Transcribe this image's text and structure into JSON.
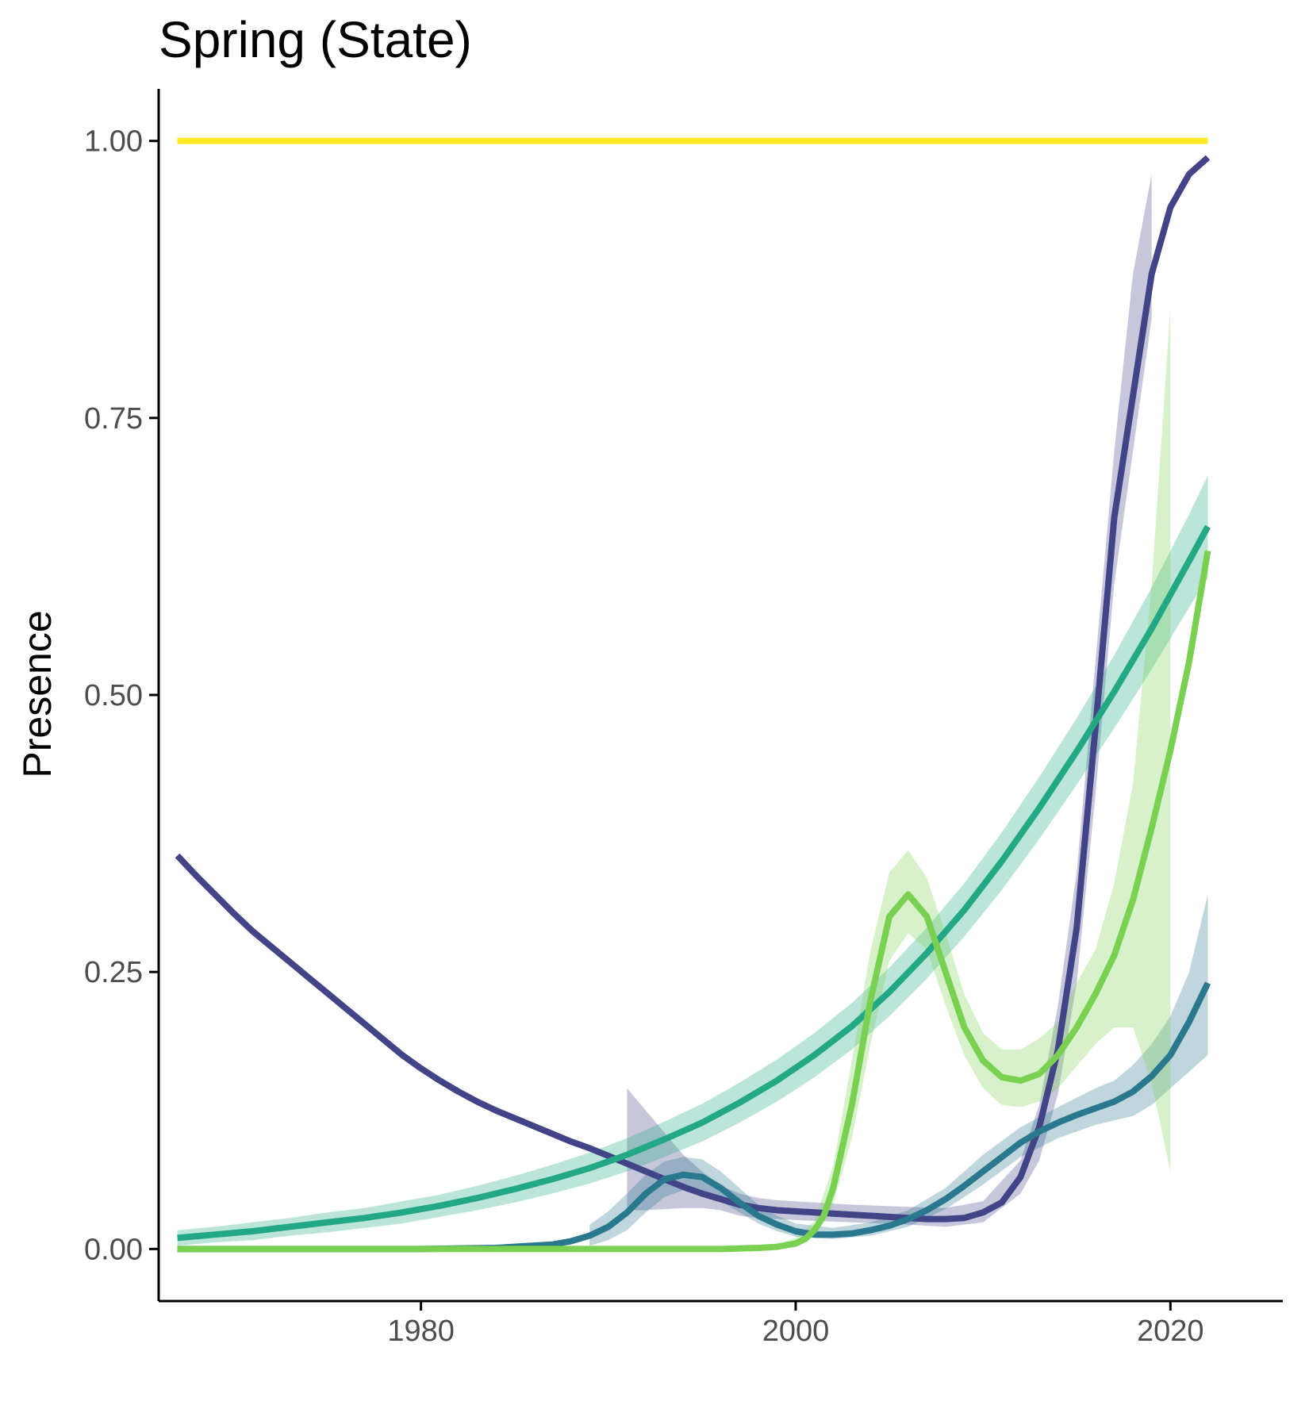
{
  "chart_data": {
    "type": "line",
    "title": "Spring (State)",
    "xlabel": "",
    "ylabel": "Presence",
    "xlim": [
      1966,
      2026
    ],
    "ylim": [
      -0.047,
      1.047
    ],
    "x_ticks": [
      1980,
      2000,
      2020
    ],
    "y_ticks": [
      0.0,
      0.25,
      0.5,
      0.75,
      1.0
    ],
    "y_tick_labels": [
      "0.00",
      "0.25",
      "0.50",
      "0.75",
      "1.00"
    ],
    "x_tick_labels": [
      "1980",
      "2000",
      "2020"
    ],
    "grid": false,
    "legend": "none",
    "series": [
      {
        "color": "#FDE725",
        "x": [
          1967,
          2022
        ],
        "y": [
          1.0,
          1.0
        ]
      },
      {
        "color": "#414487",
        "x": [
          1967,
          1968,
          1969,
          1970,
          1971,
          1972,
          1973,
          1974,
          1975,
          1976,
          1977,
          1978,
          1979,
          1980,
          1981,
          1982,
          1983,
          1984,
          1985,
          1986,
          1987,
          1988,
          1989,
          1990,
          1991,
          1992,
          1993,
          1994,
          1995,
          1996,
          1997,
          1998,
          1999,
          2000,
          2001,
          2002,
          2003,
          2004,
          2005,
          2006,
          2007,
          2008,
          2009,
          2010,
          2011,
          2012,
          2013,
          2014,
          2015,
          2016,
          2017,
          2018,
          2019,
          2020,
          2021,
          2022
        ],
        "y": [
          0.355,
          0.337,
          0.32,
          0.303,
          0.287,
          0.273,
          0.259,
          0.245,
          0.231,
          0.217,
          0.203,
          0.189,
          0.175,
          0.163,
          0.152,
          0.142,
          0.133,
          0.125,
          0.118,
          0.111,
          0.104,
          0.097,
          0.091,
          0.084,
          0.077,
          0.07,
          0.063,
          0.056,
          0.05,
          0.045,
          0.04,
          0.037,
          0.035,
          0.034,
          0.033,
          0.032,
          0.031,
          0.03,
          0.029,
          0.028,
          0.027,
          0.027,
          0.028,
          0.033,
          0.042,
          0.065,
          0.11,
          0.18,
          0.29,
          0.47,
          0.66,
          0.77,
          0.88,
          0.94,
          0.97,
          0.985
        ],
        "band_x": [
          1991,
          1992,
          1993,
          1994,
          1995,
          1996,
          1997,
          1998,
          1999,
          2000,
          2003,
          2006,
          2008,
          2010,
          2012,
          2013,
          2014,
          2015,
          2016,
          2017,
          2018,
          2019
        ],
        "band_low": [
          0.035,
          0.035,
          0.036,
          0.037,
          0.037,
          0.035,
          0.03,
          0.028,
          0.027,
          0.026,
          0.024,
          0.022,
          0.02,
          0.024,
          0.05,
          0.08,
          0.14,
          0.24,
          0.41,
          0.6,
          0.72,
          0.84
        ],
        "band_high": [
          0.145,
          0.125,
          0.105,
          0.085,
          0.07,
          0.057,
          0.05,
          0.046,
          0.044,
          0.043,
          0.04,
          0.038,
          0.037,
          0.043,
          0.08,
          0.13,
          0.22,
          0.34,
          0.53,
          0.72,
          0.88,
          0.97
        ]
      },
      {
        "color": "#2A788E",
        "x": [
          1967,
          1975,
          1980,
          1984,
          1987,
          1988,
          1989,
          1990,
          1991,
          1992,
          1993,
          1994,
          1995,
          1996,
          1997,
          1998,
          1999,
          2000,
          2001,
          2002,
          2003,
          2004,
          2005,
          2006,
          2007,
          2008,
          2009,
          2010,
          2011,
          2012,
          2013,
          2014,
          2015,
          2016,
          2017,
          2018,
          2019,
          2020,
          2021,
          2022
        ],
        "y": [
          0.0,
          0.0,
          0.0,
          0.001,
          0.004,
          0.007,
          0.012,
          0.02,
          0.033,
          0.05,
          0.063,
          0.067,
          0.065,
          0.055,
          0.042,
          0.03,
          0.022,
          0.016,
          0.013,
          0.013,
          0.014,
          0.017,
          0.021,
          0.027,
          0.035,
          0.045,
          0.057,
          0.07,
          0.083,
          0.096,
          0.106,
          0.114,
          0.121,
          0.127,
          0.133,
          0.142,
          0.156,
          0.175,
          0.205,
          0.24
        ],
        "band_x": [
          1989,
          1990,
          1991,
          1992,
          1993,
          1994,
          1995,
          1996,
          1997,
          1998,
          1999,
          2000,
          2002,
          2004,
          2006,
          2008,
          2010,
          2012,
          2014,
          2016,
          2017,
          2018,
          2019,
          2020,
          2021,
          2022
        ],
        "band_low": [
          0.003,
          0.008,
          0.017,
          0.033,
          0.047,
          0.053,
          0.05,
          0.043,
          0.033,
          0.023,
          0.016,
          0.011,
          0.009,
          0.012,
          0.02,
          0.036,
          0.058,
          0.083,
          0.1,
          0.112,
          0.116,
          0.12,
          0.13,
          0.145,
          0.16,
          0.175
        ],
        "band_high": [
          0.022,
          0.034,
          0.05,
          0.067,
          0.079,
          0.083,
          0.081,
          0.07,
          0.055,
          0.04,
          0.03,
          0.023,
          0.019,
          0.024,
          0.035,
          0.055,
          0.085,
          0.11,
          0.128,
          0.145,
          0.152,
          0.166,
          0.185,
          0.21,
          0.25,
          0.32
        ]
      },
      {
        "color": "#22A884",
        "x": [
          1967,
          1969,
          1971,
          1973,
          1975,
          1977,
          1979,
          1981,
          1983,
          1985,
          1987,
          1989,
          1991,
          1993,
          1995,
          1997,
          1999,
          2001,
          2003,
          2005,
          2007,
          2009,
          2011,
          2013,
          2015,
          2017,
          2019,
          2021,
          2022
        ],
        "y": [
          0.01,
          0.013,
          0.016,
          0.02,
          0.024,
          0.028,
          0.033,
          0.039,
          0.046,
          0.054,
          0.063,
          0.073,
          0.085,
          0.099,
          0.114,
          0.132,
          0.152,
          0.175,
          0.201,
          0.232,
          0.267,
          0.306,
          0.35,
          0.398,
          0.449,
          0.503,
          0.56,
          0.621,
          0.652
        ],
        "band_half_width": [
          0.007,
          0.007,
          0.008,
          0.008,
          0.009,
          0.009,
          0.01,
          0.01,
          0.011,
          0.012,
          0.013,
          0.014,
          0.015,
          0.016,
          0.017,
          0.018,
          0.019,
          0.02,
          0.021,
          0.022,
          0.023,
          0.024,
          0.026,
          0.028,
          0.03,
          0.033,
          0.037,
          0.042,
          0.046
        ]
      },
      {
        "color": "#7AD151",
        "x": [
          1967,
          1990,
          1996,
          1998,
          1999,
          2000,
          2000.5,
          2001,
          2001.5,
          2002,
          2003,
          2004,
          2005,
          2006,
          2007,
          2008,
          2009,
          2010,
          2011,
          2012,
          2013,
          2014,
          2015,
          2016,
          2017,
          2018,
          2019,
          2020,
          2021,
          2022
        ],
        "y": [
          0.0,
          0.0,
          0.0,
          0.001,
          0.002,
          0.005,
          0.009,
          0.017,
          0.03,
          0.055,
          0.13,
          0.225,
          0.3,
          0.32,
          0.3,
          0.25,
          0.2,
          0.17,
          0.155,
          0.152,
          0.158,
          0.175,
          0.2,
          0.23,
          0.265,
          0.315,
          0.38,
          0.45,
          0.53,
          0.63
        ],
        "band_x": [
          1999,
          2000,
          2001,
          2002,
          2003,
          2004,
          2005,
          2006,
          2007,
          2008,
          2009,
          2010,
          2011,
          2012,
          2013,
          2014,
          2015,
          2016,
          2017,
          2018,
          2019,
          2020
        ],
        "band_low": [
          0.0,
          0.003,
          0.012,
          0.04,
          0.1,
          0.185,
          0.26,
          0.285,
          0.27,
          0.22,
          0.175,
          0.145,
          0.13,
          0.128,
          0.133,
          0.145,
          0.165,
          0.185,
          0.2,
          0.2,
          0.15,
          0.07
        ],
        "band_high": [
          0.004,
          0.01,
          0.025,
          0.075,
          0.17,
          0.27,
          0.34,
          0.36,
          0.335,
          0.285,
          0.23,
          0.195,
          0.18,
          0.18,
          0.19,
          0.205,
          0.24,
          0.27,
          0.33,
          0.42,
          0.6,
          0.85
        ]
      }
    ]
  }
}
